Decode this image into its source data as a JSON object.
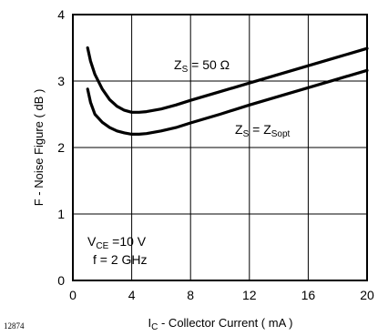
{
  "chart_data": {
    "type": "line",
    "xlabel": {
      "prefix": "I",
      "sub": "C",
      "rest": " - Collector Current ( mA )"
    },
    "ylabel": "F  -  Noise Figure  ( dB )",
    "xlim": [
      0,
      20
    ],
    "ylim": [
      0,
      4
    ],
    "xticks": [
      0,
      4,
      8,
      12,
      16,
      20
    ],
    "yticks": [
      0,
      1,
      2,
      3,
      4
    ],
    "grid": true,
    "series": [
      {
        "name": "ZS = 50 Ω",
        "x": [
          1.0,
          1.2,
          1.5,
          2.0,
          2.5,
          3.0,
          3.5,
          4.0,
          4.5,
          5.0,
          6.0,
          7.0,
          8.0,
          10.0,
          12.0,
          14.0,
          16.0,
          18.0,
          20.0
        ],
        "y": [
          3.5,
          3.3,
          3.1,
          2.88,
          2.72,
          2.62,
          2.56,
          2.53,
          2.53,
          2.54,
          2.58,
          2.64,
          2.71,
          2.84,
          2.97,
          3.1,
          3.23,
          3.36,
          3.49
        ]
      },
      {
        "name": "ZS = ZSopt",
        "x": [
          1.0,
          1.2,
          1.5,
          2.0,
          2.5,
          3.0,
          3.5,
          4.0,
          4.5,
          5.0,
          6.0,
          7.0,
          8.0,
          10.0,
          12.0,
          14.0,
          16.0,
          18.0,
          20.0
        ],
        "y": [
          2.88,
          2.68,
          2.5,
          2.38,
          2.3,
          2.25,
          2.22,
          2.2,
          2.2,
          2.21,
          2.25,
          2.3,
          2.37,
          2.5,
          2.64,
          2.77,
          2.9,
          3.03,
          3.16
        ]
      }
    ],
    "labels": {
      "zs50": {
        "z": "Z",
        "sub": "S",
        "rest": " = 50 Ω"
      },
      "zsopt": {
        "z": "Z",
        "sub": "S",
        "mid": " = Z",
        "sub2": "Sopt"
      },
      "vce": {
        "v": "V",
        "sub": "CE",
        "rest": " =10 V"
      },
      "freq": "f = 2 GHz"
    },
    "figure_code": "12874"
  }
}
